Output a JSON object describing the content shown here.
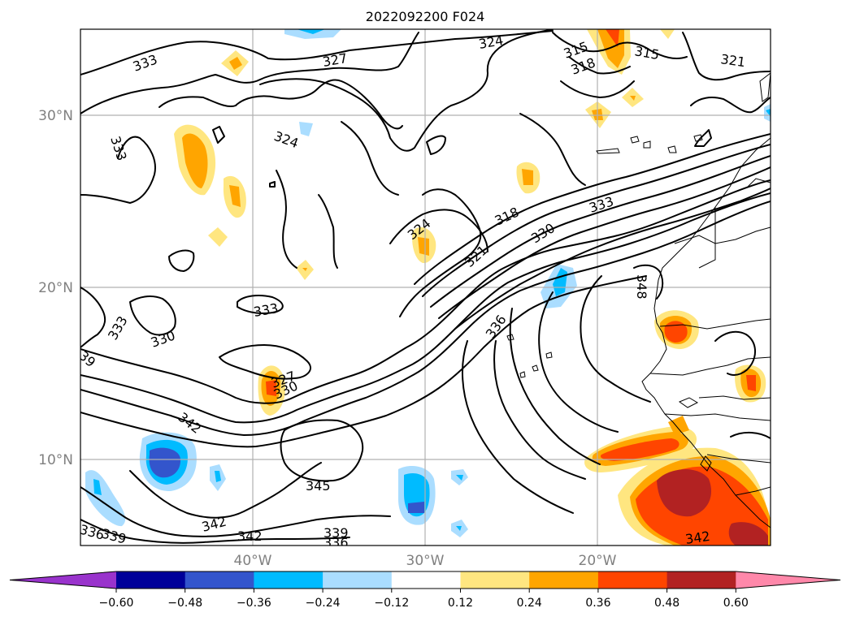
{
  "title": "2022092200 F024",
  "lat_ticks": [
    "30°N",
    "20°N",
    "10°N"
  ],
  "lon_ticks": [
    "40°W",
    "30°W",
    "20°W"
  ],
  "contour_labels": [
    "333",
    "327",
    "324",
    "315",
    "318",
    "315",
    "321",
    "324",
    "333",
    "318",
    "321",
    "330",
    "333",
    "324",
    "348",
    "336",
    "333",
    "330",
    "327",
    "330",
    "333",
    "342",
    "345",
    "342",
    "339",
    "342",
    "339",
    "336",
    "336",
    "342",
    "39"
  ],
  "colorbar": {
    "ticks": [
      "−0.60",
      "−0.48",
      "−0.36",
      "−0.24",
      "−0.12",
      "0.12",
      "0.24",
      "0.36",
      "0.48",
      "0.60"
    ],
    "colors": [
      "#9933cc",
      "#000099",
      "#3355cc",
      "#00bbff",
      "#aaddff",
      "#ffffff",
      "#ffe680",
      "#ffa500",
      "#ff4500",
      "#b22222",
      "#ff88aa"
    ]
  }
}
